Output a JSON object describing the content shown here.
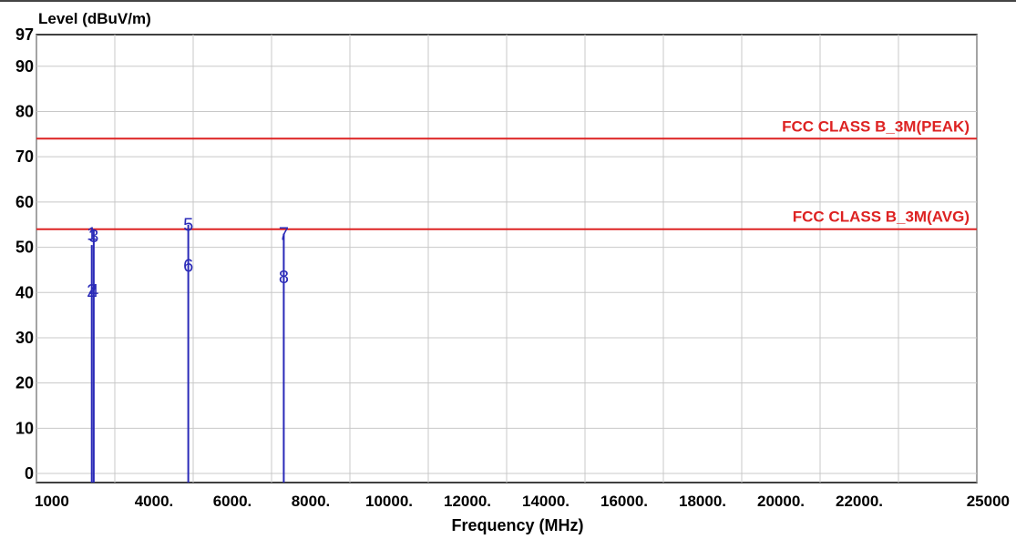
{
  "chart_data": {
    "type": "line",
    "title": "",
    "ylabel": "Level (dBuV/m)",
    "xlabel": "Frequency (MHz)",
    "xlim": [
      1000,
      25000
    ],
    "ylim": [
      -2,
      97
    ],
    "x_ticks": [
      {
        "value": 1000,
        "label": "1000"
      },
      {
        "value": 4000,
        "label": "4000."
      },
      {
        "value": 6000,
        "label": "6000."
      },
      {
        "value": 8000,
        "label": "8000."
      },
      {
        "value": 10000,
        "label": "10000."
      },
      {
        "value": 12000,
        "label": "12000."
      },
      {
        "value": 14000,
        "label": "14000."
      },
      {
        "value": 16000,
        "label": "16000."
      },
      {
        "value": 18000,
        "label": "18000."
      },
      {
        "value": 20000,
        "label": "20000."
      },
      {
        "value": 22000,
        "label": "22000."
      },
      {
        "value": 25000,
        "label": "25000"
      }
    ],
    "y_ticks": [
      {
        "value": 97,
        "label": "97"
      },
      {
        "value": 90,
        "label": "90"
      },
      {
        "value": 80,
        "label": "80"
      },
      {
        "value": 70,
        "label": "70"
      },
      {
        "value": 60,
        "label": "60"
      },
      {
        "value": 50,
        "label": "50"
      },
      {
        "value": 40,
        "label": "40"
      },
      {
        "value": 30,
        "label": "30"
      },
      {
        "value": 20,
        "label": "20"
      },
      {
        "value": 10,
        "label": "10"
      },
      {
        "value": 0,
        "label": "0"
      }
    ],
    "grid": true,
    "limit_lines": [
      {
        "name": "FCC CLASS B_3M(PEAK)",
        "value": 74,
        "color": "#dd2222"
      },
      {
        "name": "FCC CLASS B_3M(AVG)",
        "value": 54,
        "color": "#dd2222"
      }
    ],
    "series_color": "#2a2ab8",
    "markers": [
      {
        "label": "1",
        "x": 2412,
        "y": 53
      },
      {
        "label": "2",
        "x": 2412,
        "y": 40.5
      },
      {
        "label": "3",
        "x": 2462,
        "y": 52.5
      },
      {
        "label": "4",
        "x": 2462,
        "y": 40.5
      },
      {
        "label": "5",
        "x": 4875,
        "y": 55
      },
      {
        "label": "6",
        "x": 4875,
        "y": 46
      },
      {
        "label": "7",
        "x": 7312,
        "y": 53
      },
      {
        "label": "8",
        "x": 7312,
        "y": 43.5
      }
    ],
    "lines": [
      {
        "x": 2412,
        "y": 50.5
      },
      {
        "x": 2462,
        "y": 54
      },
      {
        "x": 4875,
        "y": 55
      },
      {
        "x": 7312,
        "y": 53
      }
    ]
  }
}
